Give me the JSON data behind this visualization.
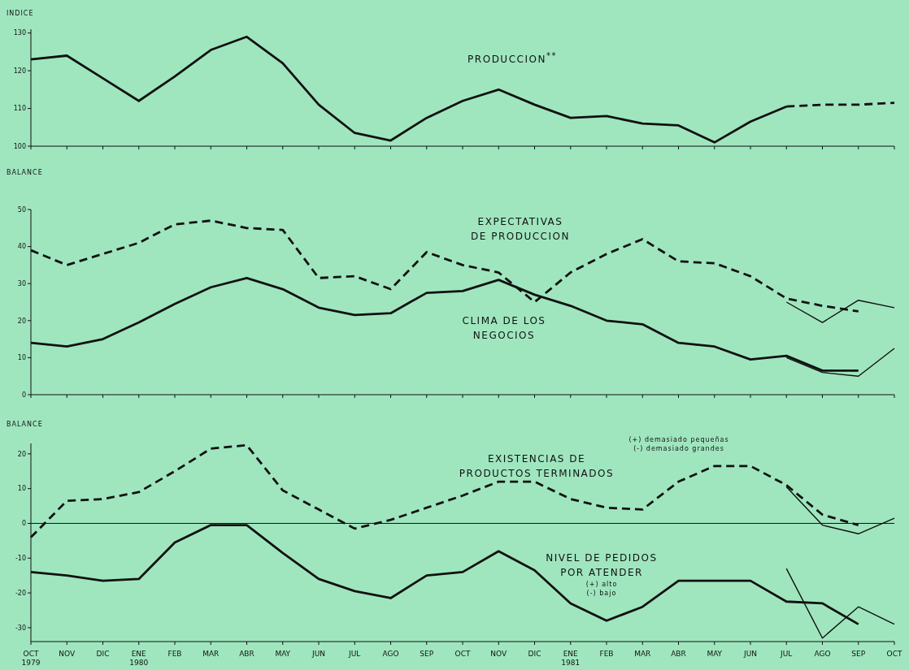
{
  "chart_data": [
    {
      "type": "line",
      "ylabel": "INDICE",
      "categories": [
        null,
        null,
        null,
        null,
        null,
        null,
        null,
        null,
        null,
        null,
        null,
        null,
        null,
        null,
        null,
        null,
        null,
        null,
        null,
        null,
        null,
        null,
        null,
        null,
        null
      ],
      "ylim": [
        100,
        131
      ],
      "yticks": [
        100,
        110,
        120,
        130
      ],
      "tick_labels": "y",
      "grid": false,
      "legend": false,
      "series": [
        {
          "name": "PRODUCCION$^{**}$",
          "color": "#111111",
          "line_style": "solid",
          "values": [
            123,
            124,
            118,
            112,
            118.5,
            125.5,
            129,
            122,
            111,
            103.5,
            101.5,
            107.5,
            112,
            115,
            111,
            107.5,
            108,
            106,
            105.5,
            101,
            106.5,
            110.5,
            null,
            null,
            null
          ]
        },
        {
          "color": "#111111",
          "line_style": "dashed",
          "values": [
            null,
            null,
            null,
            null,
            null,
            null,
            null,
            null,
            null,
            null,
            null,
            null,
            null,
            null,
            null,
            null,
            null,
            null,
            null,
            null,
            null,
            110.5,
            111,
            111,
            111.5
          ]
        }
      ]
    },
    {
      "type": "line",
      "ylabel": "BALANCE",
      "categories": [
        null,
        null,
        null,
        null,
        null,
        null,
        null,
        null,
        null,
        null,
        null,
        null,
        null,
        null,
        null,
        null,
        null,
        null,
        null,
        null,
        null,
        null,
        null,
        null,
        null
      ],
      "ylim": [
        0,
        50
      ],
      "yticks": [
        0,
        10,
        20,
        30,
        40,
        50
      ],
      "tick_labels": "y",
      "grid": false,
      "legend": false,
      "series": [
        {
          "name": "EXPECTATIVAS\nDE PRODUCCION",
          "color": "#111111",
          "line_style": "dashed",
          "values": [
            39,
            35,
            38,
            41,
            46,
            47,
            45,
            44.5,
            31.5,
            32,
            28.5,
            38.5,
            35,
            33,
            25,
            33,
            38,
            42,
            36,
            35.5,
            32,
            26,
            24,
            22.5,
            null
          ]
        },
        {
          "color": "#111111",
          "line_style": "solid",
          "values": [
            null,
            null,
            null,
            null,
            null,
            null,
            null,
            null,
            null,
            null,
            null,
            null,
            null,
            null,
            null,
            null,
            null,
            null,
            null,
            null,
            null,
            25,
            19.5,
            25.5,
            23.5
          ]
        },
        {
          "name": "CLIMA DE LOS\nNEGOCIOS",
          "color": "#111111",
          "line_style": "solid",
          "values": [
            14,
            13,
            15,
            19.5,
            24.5,
            29,
            31.5,
            28.5,
            23.5,
            21.5,
            22,
            27.5,
            28,
            31,
            27,
            24,
            20,
            19,
            14,
            13,
            9.5,
            10.5,
            6.5,
            6.5,
            null
          ]
        },
        {
          "color": "#111111",
          "line_style": "solid",
          "values": [
            null,
            null,
            null,
            null,
            null,
            null,
            null,
            null,
            null,
            null,
            null,
            null,
            null,
            null,
            null,
            null,
            null,
            null,
            null,
            null,
            null,
            10,
            6,
            5,
            12.5
          ]
        }
      ]
    },
    {
      "type": "line",
      "ylabel": "BALANCE",
      "categories": [
        "OCT\n1979",
        "NOV",
        "DIC",
        "ENE\n1980",
        "FEB",
        "MAR",
        "ABR",
        "MAY",
        "JUN",
        "JUL",
        "AGO",
        "SEP",
        "OCT",
        "NOV",
        "DIC",
        "ENE\n1981",
        "FEB",
        "MAR",
        "ABR",
        "MAY",
        "JUN",
        "JUL",
        "AGO",
        "SEP",
        "OCT"
      ],
      "ylim": [
        -34,
        23
      ],
      "yticks": [
        -30,
        -20,
        -10,
        0,
        10,
        20
      ],
      "grid": false,
      "legend": false,
      "ref_lines": [
        {
          "axis": "y",
          "value": 0
        }
      ],
      "annotations": [
        "(+) demasiado pequeñas\n(-) demasiado grandes",
        "(+) alto\n(-) bajo"
      ],
      "series": [
        {
          "name": "EXISTENCIAS DE\nPRODUCTOS TERMINADOS",
          "color": "#111111",
          "line_style": "dashed",
          "values": [
            -4,
            6.5,
            7,
            9,
            15,
            21.5,
            22.5,
            9.5,
            4,
            -1.5,
            1,
            4.5,
            8,
            12,
            12,
            7,
            4.5,
            4,
            12,
            16.5,
            16.5,
            11,
            2.5,
            -0.5,
            null
          ]
        },
        {
          "color": "#111111",
          "line_style": "solid",
          "values": [
            null,
            null,
            null,
            null,
            null,
            null,
            null,
            null,
            null,
            null,
            null,
            null,
            null,
            null,
            null,
            null,
            null,
            null,
            null,
            null,
            null,
            10.5,
            -0.5,
            -3,
            1.5
          ]
        },
        {
          "name": "NIVEL DE PEDIDOS\nPOR ATENDER",
          "color": "#111111",
          "line_style": "solid",
          "values": [
            -14,
            -15,
            -16.5,
            -16,
            -5.5,
            -0.5,
            -0.5,
            -8.5,
            -16,
            -19.5,
            -21.5,
            -15,
            -14,
            -8,
            -13.5,
            -23,
            -28,
            -24,
            -16.5,
            -16.5,
            -16.5,
            -22.5,
            -23,
            -29,
            null
          ]
        },
        {
          "color": "#111111",
          "line_style": "solid",
          "values": [
            null,
            null,
            null,
            null,
            null,
            null,
            null,
            null,
            null,
            null,
            null,
            null,
            null,
            null,
            null,
            null,
            null,
            null,
            null,
            null,
            null,
            -13,
            -33,
            -24,
            -29
          ]
        }
      ]
    }
  ]
}
